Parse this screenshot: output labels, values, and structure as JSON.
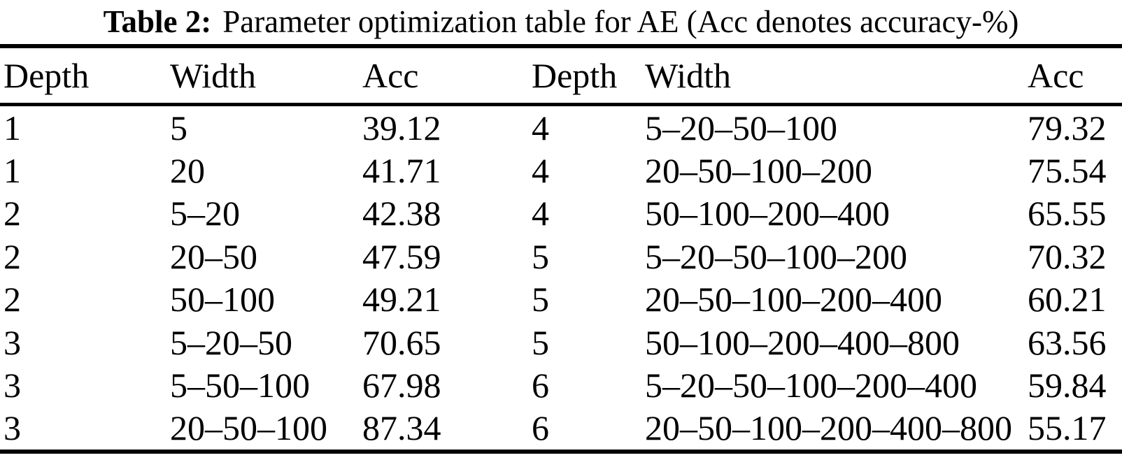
{
  "caption": {
    "label": "Table 2:",
    "text": "Parameter optimization table for AE (Acc denotes accuracy-%)"
  },
  "table": {
    "headers": [
      "Depth",
      "Width",
      "Acc",
      "Depth",
      "Width",
      "Acc"
    ],
    "rows": [
      [
        "1",
        "5",
        "39.12",
        "4",
        "5–20–50–100",
        "79.32"
      ],
      [
        "1",
        "20",
        "41.71",
        "4",
        "20–50–100–200",
        "75.54"
      ],
      [
        "2",
        "5–20",
        "42.38",
        "4",
        "50–100–200–400",
        "65.55"
      ],
      [
        "2",
        "20–50",
        "47.59",
        "5",
        "5–20–50–100–200",
        "70.32"
      ],
      [
        "2",
        "50–100",
        "49.21",
        "5",
        "20–50–100–200–400",
        "60.21"
      ],
      [
        "3",
        "5–20–50",
        "70.65",
        "5",
        "50–100–200–400–800",
        "63.56"
      ],
      [
        "3",
        "5–50–100",
        "67.98",
        "6",
        "5–20–50–100–200–400",
        "59.84"
      ],
      [
        "3",
        "20–50–100",
        "87.34",
        "6",
        "20–50–100–200–400–800",
        "55.17"
      ]
    ]
  },
  "colors": {
    "text": "#000000",
    "background": "#ffffff",
    "rule": "#000000"
  }
}
